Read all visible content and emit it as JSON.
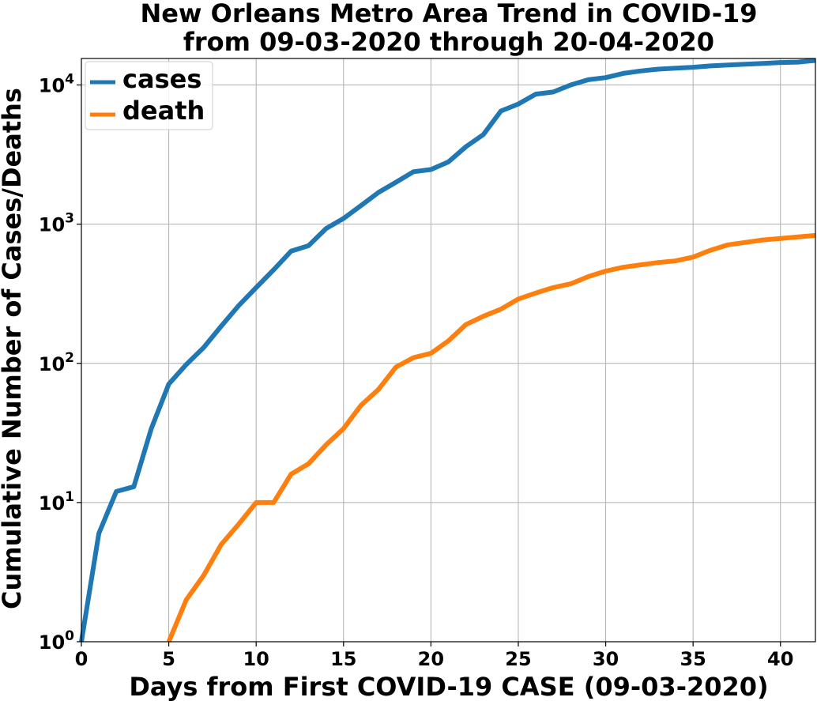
{
  "chart_data": {
    "type": "line",
    "title_lines": [
      "New Orleans Metro Area Trend in COVID-19",
      "from 09-03-2020 through 20-04-2020"
    ],
    "xlabel": "Days from First COVID-19 CASE (09-03-2020)",
    "ylabel": "Cumulative Number of Cases/Deaths",
    "xlim": [
      0,
      42
    ],
    "ylim": [
      1,
      15500
    ],
    "yscale": "log",
    "x_ticks": [
      0,
      5,
      10,
      15,
      20,
      25,
      30,
      35,
      40
    ],
    "y_ticks": [
      {
        "value": 1,
        "base": "10",
        "exp": "0"
      },
      {
        "value": 10,
        "base": "10",
        "exp": "1"
      },
      {
        "value": 100,
        "base": "10",
        "exp": "2"
      },
      {
        "value": 1000,
        "base": "10",
        "exp": "3"
      },
      {
        "value": 10000,
        "base": "10",
        "exp": "4"
      }
    ],
    "grid": true,
    "legend_position": "top-left",
    "series": [
      {
        "name": "cases",
        "color": "#1f77b4",
        "x": [
          0,
          1,
          2,
          3,
          4,
          5,
          6,
          7,
          8,
          9,
          10,
          11,
          12,
          13,
          14,
          15,
          16,
          17,
          18,
          19,
          20,
          21,
          22,
          23,
          24,
          25,
          26,
          27,
          28,
          29,
          30,
          31,
          32,
          33,
          34,
          35,
          36,
          37,
          38,
          39,
          40,
          41,
          42
        ],
        "values": [
          1,
          6,
          12,
          13,
          34,
          71,
          98,
          130,
          185,
          260,
          350,
          470,
          640,
          700,
          930,
          1100,
          1360,
          1690,
          2000,
          2380,
          2470,
          2800,
          3600,
          4400,
          6500,
          7300,
          8600,
          8900,
          10000,
          10900,
          11300,
          12100,
          12600,
          13000,
          13200,
          13400,
          13700,
          13900,
          14100,
          14300,
          14500,
          14600,
          15000
        ]
      },
      {
        "name": "death",
        "color": "#ff7f0e",
        "x": [
          5,
          6,
          7,
          8,
          9,
          10,
          11,
          12,
          13,
          14,
          15,
          16,
          17,
          18,
          19,
          20,
          21,
          22,
          23,
          24,
          25,
          26,
          27,
          28,
          29,
          30,
          31,
          32,
          33,
          34,
          35,
          36,
          37,
          38,
          39,
          40,
          41,
          42
        ],
        "values": [
          1,
          2,
          3,
          5,
          7,
          10,
          10,
          16,
          19,
          26,
          34,
          50,
          65,
          94,
          110,
          118,
          145,
          190,
          218,
          245,
          290,
          320,
          350,
          373,
          420,
          460,
          490,
          510,
          530,
          545,
          580,
          650,
          710,
          740,
          770,
          790,
          810,
          830
        ]
      }
    ]
  }
}
